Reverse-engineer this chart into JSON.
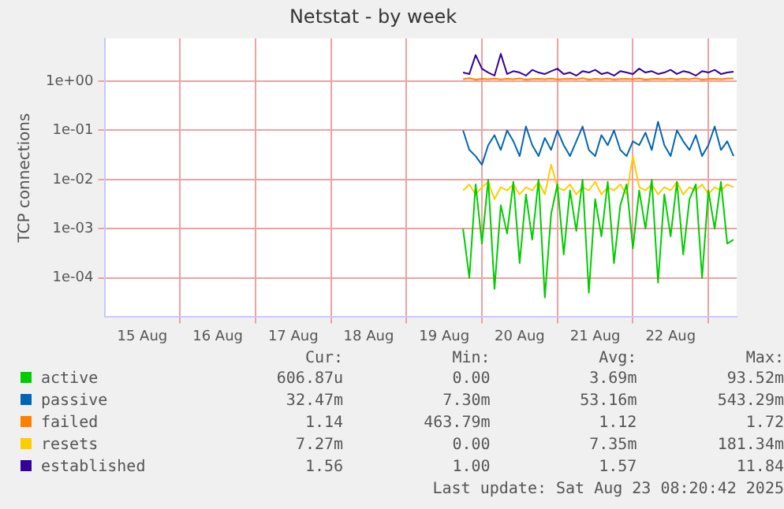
{
  "chart_data": {
    "type": "line",
    "title": "Netstat - by week",
    "ylabel": "TCP connections",
    "log": "y",
    "grid": true,
    "legend": "bottom",
    "marker": "none",
    "line_style": "solid",
    "xlim": [
      "2025-08-15T00:00",
      "2025-08-23T09:00"
    ],
    "xticks": [
      {
        "value": "2025-08-15T12:00",
        "label": "15 Aug"
      },
      {
        "value": "2025-08-16T00:00",
        "label": null
      },
      {
        "value": "2025-08-16T12:00",
        "label": "16 Aug"
      },
      {
        "value": "2025-08-17T00:00",
        "label": null
      },
      {
        "value": "2025-08-17T12:00",
        "label": "17 Aug"
      },
      {
        "value": "2025-08-18T00:00",
        "label": null
      },
      {
        "value": "2025-08-18T12:00",
        "label": "18 Aug"
      },
      {
        "value": "2025-08-19T00:00",
        "label": null
      },
      {
        "value": "2025-08-19T12:00",
        "label": "19 Aug"
      },
      {
        "value": "2025-08-20T00:00",
        "label": null
      },
      {
        "value": "2025-08-20T12:00",
        "label": "20 Aug"
      },
      {
        "value": "2025-08-21T00:00",
        "label": null
      },
      {
        "value": "2025-08-21T12:00",
        "label": "21 Aug"
      },
      {
        "value": "2025-08-22T00:00",
        "label": null
      },
      {
        "value": "2025-08-22T12:00",
        "label": "22 Aug"
      },
      {
        "value": "2025-08-23T00:00",
        "label": null
      }
    ],
    "ylim": [
      1.6e-05,
      7.4
    ],
    "yticks": [
      {
        "value": 0.0001,
        "label": "1e-04"
      },
      {
        "value": 0.001,
        "label": "1e-03"
      },
      {
        "value": 0.01,
        "label": "1e-02"
      },
      {
        "value": 0.1,
        "label": "1e-01"
      },
      {
        "value": 1,
        "label": "1e+00"
      }
    ],
    "x": [
      "2025-08-19T18:00",
      "2025-08-19T20:00",
      "2025-08-19T22:00",
      "2025-08-20T00:00",
      "2025-08-20T02:00",
      "2025-08-20T04:00",
      "2025-08-20T06:00",
      "2025-08-20T08:00",
      "2025-08-20T10:00",
      "2025-08-20T12:00",
      "2025-08-20T14:00",
      "2025-08-20T16:00",
      "2025-08-20T18:00",
      "2025-08-20T20:00",
      "2025-08-20T22:00",
      "2025-08-21T00:00",
      "2025-08-21T02:00",
      "2025-08-21T04:00",
      "2025-08-21T06:00",
      "2025-08-21T08:00",
      "2025-08-21T10:00",
      "2025-08-21T12:00",
      "2025-08-21T14:00",
      "2025-08-21T16:00",
      "2025-08-21T18:00",
      "2025-08-21T20:00",
      "2025-08-21T22:00",
      "2025-08-22T00:00",
      "2025-08-22T02:00",
      "2025-08-22T04:00",
      "2025-08-22T06:00",
      "2025-08-22T08:00",
      "2025-08-22T10:00",
      "2025-08-22T12:00",
      "2025-08-22T14:00",
      "2025-08-22T16:00",
      "2025-08-22T18:00",
      "2025-08-22T20:00",
      "2025-08-22T22:00",
      "2025-08-23T00:00",
      "2025-08-23T02:00",
      "2025-08-23T04:00",
      "2025-08-23T06:00",
      "2025-08-23T08:00"
    ],
    "series": [
      {
        "name": "active",
        "color": "#00cc00",
        "values": [
          0.001,
          0.0001,
          0.008,
          0.0005,
          0.01,
          6e-05,
          0.003,
          0.0008,
          0.009,
          0.0002,
          0.005,
          0.0006,
          0.01,
          4e-05,
          0.002,
          0.008,
          0.0003,
          0.006,
          0.0009,
          0.01,
          5e-05,
          0.004,
          0.0007,
          0.009,
          0.0002,
          0.003,
          0.008,
          0.0004,
          0.006,
          0.001,
          0.01,
          8e-05,
          0.005,
          0.0007,
          0.009,
          0.0003,
          0.004,
          0.008,
          0.0001,
          0.006,
          0.001,
          0.009,
          0.0005,
          0.0006
        ]
      },
      {
        "name": "passive",
        "color": "#0066b3",
        "values": [
          0.1,
          0.04,
          0.03,
          0.02,
          0.05,
          0.08,
          0.04,
          0.1,
          0.06,
          0.03,
          0.12,
          0.05,
          0.03,
          0.07,
          0.04,
          0.1,
          0.05,
          0.03,
          0.06,
          0.12,
          0.04,
          0.03,
          0.08,
          0.05,
          0.1,
          0.04,
          0.03,
          0.06,
          0.05,
          0.09,
          0.04,
          0.15,
          0.05,
          0.03,
          0.1,
          0.06,
          0.04,
          0.08,
          0.03,
          0.05,
          0.12,
          0.04,
          0.06,
          0.03
        ]
      },
      {
        "name": "failed",
        "color": "#ff8000",
        "values": [
          1.1,
          1.15,
          1.08,
          1.12,
          1.1,
          1.13,
          1.09,
          1.12,
          1.1,
          1.14,
          1.08,
          1.11,
          1.12,
          1.1,
          1.13,
          1.09,
          1.11,
          1.12,
          1.1,
          1.15,
          1.08,
          1.12,
          1.1,
          1.13,
          1.09,
          1.11,
          1.12,
          1.1,
          1.14,
          1.08,
          1.11,
          1.12,
          1.1,
          1.13,
          1.09,
          1.12,
          1.1,
          1.15,
          1.08,
          1.11,
          1.12,
          1.1,
          1.13,
          1.14
        ]
      },
      {
        "name": "resets",
        "color": "#ffcc00",
        "values": [
          0.006,
          0.008,
          0.005,
          0.007,
          0.009,
          0.004,
          0.007,
          0.006,
          0.008,
          0.005,
          0.007,
          0.006,
          0.009,
          0.005,
          0.02,
          0.007,
          0.006,
          0.008,
          0.005,
          0.007,
          0.006,
          0.009,
          0.005,
          0.007,
          0.006,
          0.008,
          0.005,
          0.03,
          0.007,
          0.006,
          0.008,
          0.005,
          0.007,
          0.006,
          0.009,
          0.005,
          0.007,
          0.006,
          0.008,
          0.005,
          0.007,
          0.006,
          0.008,
          0.007
        ]
      },
      {
        "name": "established",
        "color": "#330099",
        "values": [
          1.5,
          1.4,
          3.4,
          1.8,
          1.5,
          1.3,
          3.6,
          1.4,
          1.6,
          1.5,
          1.3,
          1.7,
          1.5,
          1.4,
          1.6,
          1.8,
          1.4,
          1.5,
          1.3,
          1.6,
          1.5,
          1.7,
          1.4,
          1.5,
          1.3,
          1.6,
          1.5,
          1.4,
          1.8,
          1.5,
          1.6,
          1.4,
          1.5,
          1.7,
          1.4,
          1.6,
          1.5,
          1.3,
          1.6,
          1.5,
          1.7,
          1.4,
          1.5,
          1.56
        ]
      }
    ],
    "annotations": [
      "Cur:",
      "Min:",
      "Avg:",
      "Max:",
      "606.87u",
      "0.00",
      "3.69m",
      "93.52m",
      "32.47m",
      "7.30m",
      "53.16m",
      "543.29m",
      "1.14",
      "463.79m",
      "1.12",
      "1.72",
      "7.27m",
      "0.00",
      "7.35m",
      "181.34m",
      "1.56",
      "1.00",
      "1.57",
      "11.84",
      "Last update: Sat Aug 23 08:20:42 2025"
    ]
  }
}
